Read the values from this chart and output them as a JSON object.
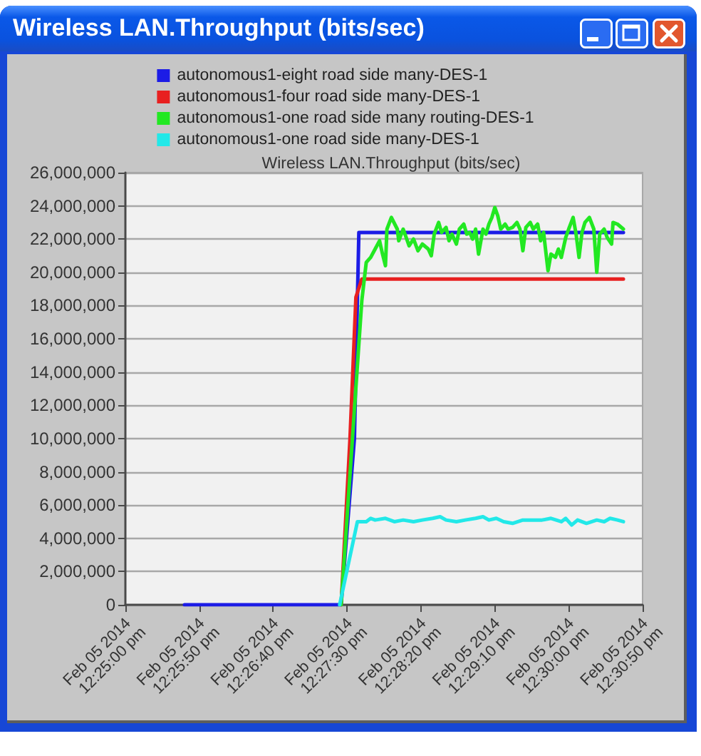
{
  "chart_data": {
    "type": "line",
    "title": "Wireless LAN.Throughput (bits/sec)",
    "subtitle": "Wireless LAN.Throughput (bits/sec)",
    "series": [
      {
        "name": "autonomous1-eight road side many-DES-1",
        "color": "#1c1ce6",
        "x": [
          "2014-02-05T12:25:40",
          "2014-02-05T12:27:26",
          "2014-02-05T12:27:35",
          "2014-02-05T12:27:38",
          "2014-02-05T12:30:37"
        ],
        "values": [
          0,
          0,
          10000000,
          22400000,
          22400000
        ]
      },
      {
        "name": "autonomous1-four road side many-DES-1",
        "color": "#e82020",
        "x": [
          "2014-02-05T12:27:26",
          "2014-02-05T12:27:32",
          "2014-02-05T12:27:36",
          "2014-02-05T12:27:40",
          "2014-02-05T12:30:37"
        ],
        "values": [
          0,
          10000000,
          18500000,
          19600000,
          19600000
        ]
      },
      {
        "name": "autonomous1-one road side many routing-DES-1",
        "color": "#22e822",
        "x": [
          "2014-02-05T12:27:26",
          "2014-02-05T12:27:40",
          "2014-02-05T12:27:43",
          "2014-02-05T12:27:46",
          "2014-02-05T12:27:49",
          "2014-02-05T12:27:52",
          "2014-02-05T12:27:54",
          "2014-02-05T12:27:56",
          "2014-02-05T12:27:57",
          "2014-02-05T12:28:00",
          "2014-02-05T12:28:04",
          "2014-02-05T12:28:05",
          "2014-02-05T12:28:08",
          "2014-02-05T12:28:12",
          "2014-02-05T12:28:15",
          "2014-02-05T12:28:18",
          "2014-02-05T12:28:21",
          "2014-02-05T12:28:25",
          "2014-02-05T12:28:27",
          "2014-02-05T12:28:29",
          "2014-02-05T12:28:32",
          "2014-02-05T12:28:34",
          "2014-02-05T12:28:37",
          "2014-02-05T12:28:39",
          "2014-02-05T12:28:41",
          "2014-02-05T12:28:44",
          "2014-02-05T12:28:46",
          "2014-02-05T12:28:49",
          "2014-02-05T12:28:51",
          "2014-02-05T12:28:53",
          "2014-02-05T12:28:55",
          "2014-02-05T12:28:57",
          "2014-02-05T12:28:59",
          "2014-02-05T12:29:02",
          "2014-02-05T12:29:04",
          "2014-02-05T12:29:06",
          "2014-02-05T12:29:08",
          "2014-02-05T12:29:10",
          "2014-02-05T12:29:12",
          "2014-02-05T12:29:14",
          "2014-02-05T12:29:17",
          "2014-02-05T12:29:19",
          "2014-02-05T12:29:22",
          "2014-02-05T12:29:25",
          "2014-02-05T12:29:27",
          "2014-02-05T12:29:29",
          "2014-02-05T12:29:31",
          "2014-02-05T12:29:34",
          "2014-02-05T12:29:36",
          "2014-02-05T12:29:39",
          "2014-02-05T12:29:41",
          "2014-02-05T12:29:43",
          "2014-02-05T12:29:46",
          "2014-02-05T12:29:48",
          "2014-02-05T12:29:51",
          "2014-02-05T12:29:53",
          "2014-02-05T12:29:55",
          "2014-02-05T12:29:58",
          "2014-02-05T12:30:00",
          "2014-02-05T12:30:03",
          "2014-02-05T12:30:05",
          "2014-02-05T12:30:07",
          "2014-02-05T12:30:09",
          "2014-02-05T12:30:11",
          "2014-02-05T12:30:14",
          "2014-02-05T12:30:17",
          "2014-02-05T12:30:19",
          "2014-02-05T12:30:21",
          "2014-02-05T12:30:24",
          "2014-02-05T12:30:26",
          "2014-02-05T12:30:29",
          "2014-02-05T12:30:30",
          "2014-02-05T12:30:33",
          "2014-02-05T12:30:37"
        ],
        "values": [
          0,
          18300000,
          20600000,
          20900000,
          21400000,
          21900000,
          21100000,
          20400000,
          22600000,
          23300000,
          22600000,
          21900000,
          22600000,
          21600000,
          22000000,
          21300000,
          21700000,
          21400000,
          21000000,
          22300000,
          23000000,
          22400000,
          22700000,
          21900000,
          22300000,
          21700000,
          22600000,
          22900000,
          22300000,
          22400000,
          22000000,
          22600000,
          21100000,
          22600000,
          22300000,
          22900000,
          23300000,
          23900000,
          23400000,
          22600000,
          22900000,
          22600000,
          22700000,
          23000000,
          22600000,
          21300000,
          22700000,
          23000000,
          22600000,
          22900000,
          21900000,
          22400000,
          20100000,
          21100000,
          20900000,
          21400000,
          20900000,
          22100000,
          22600000,
          23300000,
          22300000,
          20900000,
          22400000,
          23000000,
          23300000,
          22600000,
          20000000,
          22300000,
          22600000,
          22100000,
          21700000,
          23000000,
          22900000,
          22600000
        ]
      },
      {
        "name": "autonomous1-one road side many-DES-1",
        "color": "#22e8e8",
        "x": [
          "2014-02-05T12:27:25",
          "2014-02-05T12:27:37",
          "2014-02-05T12:27:43",
          "2014-02-05T12:27:46",
          "2014-02-05T12:27:49",
          "2014-02-05T12:27:56",
          "2014-02-05T12:28:02",
          "2014-02-05T12:28:08",
          "2014-02-05T12:28:15",
          "2014-02-05T12:28:21",
          "2014-02-05T12:28:28",
          "2014-02-05T12:28:33",
          "2014-02-05T12:28:37",
          "2014-02-05T12:28:44",
          "2014-02-05T12:28:50",
          "2014-02-05T12:28:57",
          "2014-02-05T12:29:02",
          "2014-02-05T12:29:06",
          "2014-02-05T12:29:11",
          "2014-02-05T12:29:16",
          "2014-02-05T12:29:22",
          "2014-02-05T12:29:29",
          "2014-02-05T12:29:35",
          "2014-02-05T12:29:42",
          "2014-02-05T12:29:48",
          "2014-02-05T12:29:55",
          "2014-02-05T12:29:58",
          "2014-02-05T12:30:02",
          "2014-02-05T12:30:06",
          "2014-02-05T12:30:12",
          "2014-02-05T12:30:19",
          "2014-02-05T12:30:24",
          "2014-02-05T12:30:28",
          "2014-02-05T12:30:33",
          "2014-02-05T12:30:37"
        ],
        "values": [
          0,
          5000000,
          5000000,
          5200000,
          5100000,
          5200000,
          5000000,
          5100000,
          5000000,
          5100000,
          5200000,
          5300000,
          5100000,
          5000000,
          5100000,
          5200000,
          5300000,
          5100000,
          5200000,
          5000000,
          4900000,
          5100000,
          5100000,
          5100000,
          5200000,
          5000000,
          5200000,
          4800000,
          5100000,
          4900000,
          5100000,
          5000000,
          5200000,
          5100000,
          5000000
        ]
      }
    ],
    "xlim": [
      "2014-02-05T12:25:00",
      "2014-02-05T12:30:50"
    ],
    "xticks": [
      {
        "value": "2014-02-05T12:25:00",
        "label": "Feb 05 2014 12:25:00 pm"
      },
      {
        "value": "2014-02-05T12:25:50",
        "label": "Feb 05 2014 12:25:50 pm"
      },
      {
        "value": "2014-02-05T12:26:40",
        "label": "Feb 05 2014 12:26:40 pm"
      },
      {
        "value": "2014-02-05T12:27:30",
        "label": "Feb 05 2014 12:27:30 pm"
      },
      {
        "value": "2014-02-05T12:28:20",
        "label": "Feb 05 2014 12:28:20 pm"
      },
      {
        "value": "2014-02-05T12:29:10",
        "label": "Feb 05 2014 12:29:10 pm"
      },
      {
        "value": "2014-02-05T12:30:00",
        "label": "Feb 05 2014 12:30:00 pm"
      },
      {
        "value": "2014-02-05T12:30:50",
        "label": "Feb 05 2014 12:30:50 pm"
      }
    ],
    "ylim": [
      0,
      26000000
    ],
    "yticks": [
      0,
      {
        "value": 2000000,
        "label": "2,000,000"
      },
      {
        "value": 4000000,
        "label": "4,000,000"
      },
      {
        "value": 6000000,
        "label": "6,000,000"
      },
      {
        "value": 8000000,
        "label": "8,000,000"
      },
      {
        "value": 10000000,
        "label": "10,000,000"
      },
      {
        "value": 12000000,
        "label": "12,000,000"
      },
      {
        "value": 14000000,
        "label": "14,000,000"
      },
      {
        "value": 16000000,
        "label": "16,000,000"
      },
      {
        "value": 18000000,
        "label": "18,000,000"
      },
      {
        "value": 20000000,
        "label": "20,000,000"
      },
      {
        "value": 22000000,
        "label": "22,000,000"
      },
      {
        "value": 24000000,
        "label": "24,000,000"
      },
      {
        "value": 26000000,
        "label": "26,000,000"
      }
    ],
    "grid": "y",
    "legend": "top",
    "marker": "none",
    "line_style": "solid"
  }
}
